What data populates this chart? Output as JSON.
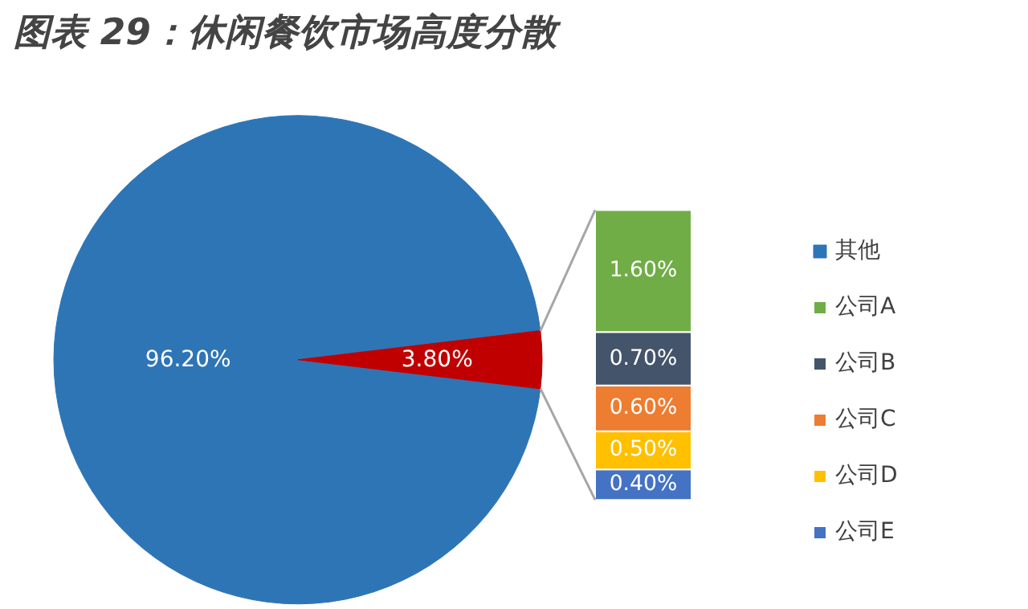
{
  "chart_data": [
    {
      "type": "pie",
      "title": "图表 29：休闲餐饮市场高度分散",
      "categories": [
        "其他",
        null
      ],
      "values": [
        96.2,
        3.8
      ],
      "colors": [
        "#2e75b6",
        "#c00000"
      ],
      "value_labels": [
        "96.20%",
        "3.80%"
      ],
      "legend": "right"
    },
    {
      "type": "bar",
      "stacked": true,
      "categories": [
        null
      ],
      "legend": "right",
      "series": [
        {
          "name": "公司E",
          "color": "#4472c4",
          "values": [
            0.4
          ],
          "value_labels": [
            "0.40%"
          ]
        },
        {
          "name": "公司D",
          "color": "#ffc000",
          "values": [
            0.5
          ],
          "value_labels": [
            "0.50%"
          ]
        },
        {
          "name": "公司C",
          "color": "#ed7d31",
          "values": [
            0.6
          ],
          "value_labels": [
            "0.60%"
          ]
        },
        {
          "name": "公司B",
          "color": "#44546a",
          "values": [
            0.7
          ],
          "value_labels": [
            "0.70%"
          ]
        },
        {
          "name": "公司A",
          "color": "#70ad47",
          "values": [
            1.6
          ],
          "value_labels": [
            "1.60%"
          ]
        }
      ]
    }
  ]
}
